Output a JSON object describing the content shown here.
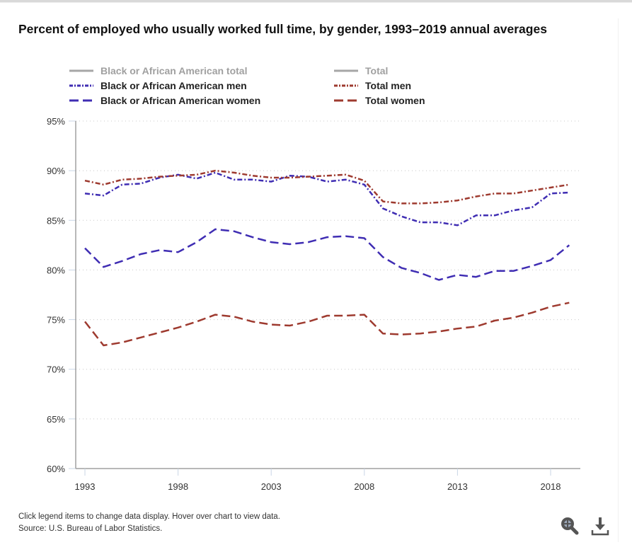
{
  "title": "Percent of employed who usually worked full time, by gender, 1993–2019 annual averages",
  "legend": [
    {
      "label": "Black or African American total",
      "style": "solid",
      "color": "#a6a6a6",
      "visible": false
    },
    {
      "label": "Total",
      "style": "solid",
      "color": "#a6a6a6",
      "visible": false
    },
    {
      "label": "Black or African American men",
      "style": "dashdot",
      "color": "#3f2db3",
      "visible": true
    },
    {
      "label": "Total men",
      "style": "dashdot",
      "color": "#9e3a2f",
      "visible": true
    },
    {
      "label": "Black or African American women",
      "style": "dash",
      "color": "#3f2db3",
      "visible": true
    },
    {
      "label": "Total women",
      "style": "dash",
      "color": "#9e3a2f",
      "visible": true
    }
  ],
  "footer": {
    "note": "Click legend items to change data display. Hover over chart to view data.",
    "source": "Source: U.S. Bureau of Labor Statistics."
  },
  "tools": {
    "zoom_icon": "magnifier-zoom-icon",
    "download_icon": "download-icon"
  },
  "chart_data": {
    "type": "line",
    "title": "Percent of employed who usually worked full time, by gender, 1993–2019 annual averages",
    "xlabel": "",
    "ylabel": "",
    "x": [
      1993,
      1994,
      1995,
      1996,
      1997,
      1998,
      1999,
      2000,
      2001,
      2002,
      2003,
      2004,
      2005,
      2006,
      2007,
      2008,
      2009,
      2010,
      2011,
      2012,
      2013,
      2014,
      2015,
      2016,
      2017,
      2018,
      2019
    ],
    "xticks": [
      "1993",
      "1998",
      "2003",
      "2008",
      "2013",
      "2018"
    ],
    "yticks": [
      "60%",
      "65%",
      "70%",
      "75%",
      "80%",
      "85%",
      "90%",
      "95%"
    ],
    "ylim": [
      60,
      95
    ],
    "xlim": [
      1993,
      2019
    ],
    "grid": "horizontal-dotted",
    "legend_position": "top",
    "series": [
      {
        "name": "Black or African American men",
        "style": "dashdot",
        "color": "#3f2db3",
        "values": [
          87.7,
          87.5,
          88.6,
          88.7,
          89.3,
          89.6,
          89.2,
          89.8,
          89.1,
          89.1,
          88.9,
          89.5,
          89.4,
          88.9,
          89.1,
          88.6,
          86.2,
          85.4,
          84.8,
          84.8,
          84.5,
          85.5,
          85.5,
          86.0,
          86.3,
          87.7,
          87.8
        ]
      },
      {
        "name": "Total men",
        "style": "dashdot",
        "color": "#9e3a2f",
        "values": [
          89.0,
          88.6,
          89.1,
          89.2,
          89.4,
          89.5,
          89.6,
          90.0,
          89.8,
          89.5,
          89.3,
          89.3,
          89.4,
          89.5,
          89.6,
          89.0,
          86.9,
          86.7,
          86.7,
          86.8,
          87.0,
          87.4,
          87.7,
          87.7,
          88.0,
          88.3,
          88.6
        ]
      },
      {
        "name": "Black or African American women",
        "style": "dash",
        "color": "#3f2db3",
        "values": [
          82.2,
          80.3,
          80.9,
          81.6,
          82.0,
          81.8,
          82.8,
          84.1,
          83.9,
          83.3,
          82.8,
          82.6,
          82.8,
          83.3,
          83.4,
          83.2,
          81.3,
          80.2,
          79.7,
          79.0,
          79.5,
          79.3,
          79.9,
          79.9,
          80.4,
          81.0,
          82.5
        ]
      },
      {
        "name": "Total women",
        "style": "dash",
        "color": "#9e3a2f",
        "values": [
          74.8,
          72.4,
          72.7,
          73.2,
          73.7,
          74.2,
          74.8,
          75.5,
          75.3,
          74.8,
          74.5,
          74.4,
          74.8,
          75.4,
          75.4,
          75.5,
          73.6,
          73.5,
          73.6,
          73.8,
          74.1,
          74.3,
          74.9,
          75.2,
          75.7,
          76.3,
          76.7
        ]
      }
    ]
  }
}
